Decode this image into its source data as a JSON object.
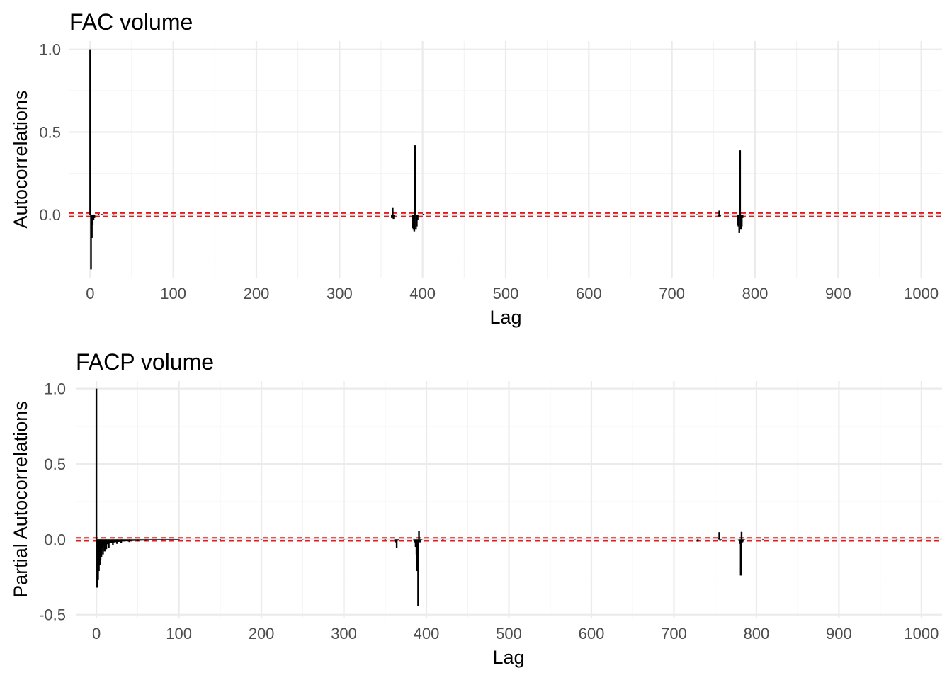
{
  "chart_data": [
    {
      "type": "bar",
      "title": "FAC volume",
      "xlabel": "Lag",
      "ylabel": "Autocorrelations",
      "xlim": [
        -25,
        1025
      ],
      "ylim": [
        -0.38,
        1.05
      ],
      "x_ticks": [
        0,
        100,
        200,
        300,
        400,
        500,
        600,
        700,
        800,
        900,
        1000
      ],
      "y_ticks": [
        0.0,
        0.5,
        1.0
      ],
      "y_tick_labels": [
        "0.0",
        "0.5",
        "1.0"
      ],
      "grid": true,
      "confidence_bounds": [
        0.01,
        -0.01
      ],
      "confidence_color": "#e41a1c",
      "bar_color": "#000000",
      "lags": [
        0,
        1,
        2,
        3,
        4,
        5,
        10,
        14,
        28,
        363,
        364,
        365,
        366,
        388,
        389,
        390,
        391,
        392,
        393,
        394,
        401,
        420,
        580,
        730,
        756,
        757,
        758,
        779,
        780,
        781,
        782,
        783,
        784,
        785,
        970,
        1000
      ],
      "values": [
        1.0,
        -0.33,
        -0.14,
        -0.06,
        -0.03,
        -0.02,
        0.005,
        0.004,
        0.003,
        -0.02,
        0.045,
        -0.025,
        -0.015,
        -0.08,
        -0.09,
        -0.1,
        0.42,
        -0.09,
        -0.07,
        -0.03,
        0.005,
        -0.003,
        -0.003,
        0.003,
        -0.01,
        0.025,
        -0.01,
        -0.06,
        -0.07,
        -0.11,
        0.39,
        -0.09,
        -0.07,
        -0.02,
        0.002,
        0.002
      ]
    },
    {
      "type": "bar",
      "title": "FACP volume",
      "xlabel": "Lag",
      "ylabel": "Partial Autocorrelations",
      "xlim": [
        -25,
        1025
      ],
      "ylim": [
        -0.52,
        1.05
      ],
      "x_ticks": [
        0,
        100,
        200,
        300,
        400,
        500,
        600,
        700,
        800,
        900,
        1000
      ],
      "y_ticks": [
        -0.5,
        0.0,
        0.5,
        1.0
      ],
      "y_tick_labels": [
        "-0.5",
        "0.0",
        "0.5",
        "1.0"
      ],
      "grid": true,
      "confidence_bounds": [
        0.01,
        -0.01
      ],
      "confidence_color": "#e41a1c",
      "bar_color": "#000000",
      "lags": [
        0,
        1,
        2,
        3,
        4,
        5,
        6,
        8,
        10,
        12,
        15,
        20,
        25,
        30,
        40,
        50,
        60,
        80,
        100,
        150,
        200,
        250,
        300,
        350,
        362,
        363,
        364,
        365,
        366,
        385,
        386,
        387,
        388,
        389,
        390,
        391,
        392,
        393,
        394,
        420,
        580,
        729,
        754,
        755,
        756,
        757,
        779,
        780,
        781,
        782,
        783,
        784,
        785,
        808,
        970,
        1000
      ],
      "values": [
        1.0,
        -0.32,
        -0.27,
        -0.21,
        -0.17,
        -0.14,
        -0.12,
        -0.1,
        -0.08,
        -0.065,
        -0.055,
        -0.04,
        -0.03,
        -0.025,
        -0.018,
        -0.013,
        -0.01,
        -0.007,
        -0.005,
        -0.003,
        -0.002,
        -0.002,
        -0.002,
        -0.003,
        -0.005,
        -0.02,
        -0.055,
        -0.01,
        -0.005,
        -0.01,
        -0.02,
        -0.05,
        -0.1,
        -0.21,
        -0.44,
        0.055,
        -0.02,
        -0.01,
        -0.005,
        -0.008,
        -0.002,
        -0.015,
        0.005,
        0.048,
        -0.01,
        -0.005,
        -0.01,
        -0.03,
        -0.24,
        0.05,
        -0.02,
        -0.01,
        -0.005,
        -0.008,
        -0.002,
        -0.002
      ]
    }
  ]
}
